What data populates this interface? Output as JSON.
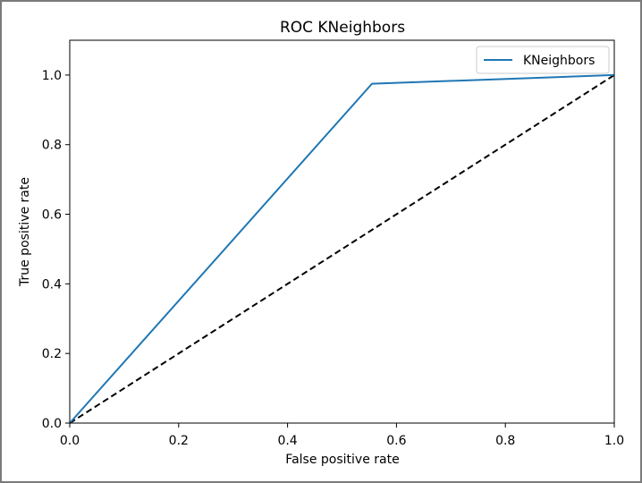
{
  "chart_data": {
    "type": "line",
    "title": "ROC KNeighbors",
    "xlabel": "False positive rate",
    "ylabel": "True positive rate",
    "xlim": [
      0.0,
      1.0
    ],
    "ylim": [
      0.0,
      1.1
    ],
    "x_ticks": [
      0.0,
      0.2,
      0.4,
      0.6,
      0.8,
      1.0
    ],
    "y_ticks": [
      0.0,
      0.2,
      0.4,
      0.6,
      0.8,
      1.0
    ],
    "x_tick_labels": [
      "0.0",
      "0.2",
      "0.4",
      "0.6",
      "0.8",
      "1.0"
    ],
    "y_tick_labels": [
      "0.0",
      "0.2",
      "0.4",
      "0.6",
      "0.8",
      "1.0"
    ],
    "grid": false,
    "legend_position": "upper right",
    "series": [
      {
        "name": "KNeighbors",
        "color": "#1f77b4",
        "style": "solid",
        "x": [
          0.0,
          0.555,
          1.0
        ],
        "y": [
          0.0,
          0.975,
          1.0
        ]
      }
    ],
    "reference_line": {
      "color": "#000000",
      "style": "dashed",
      "x": [
        0.0,
        1.0
      ],
      "y": [
        0.0,
        1.0
      ]
    }
  }
}
